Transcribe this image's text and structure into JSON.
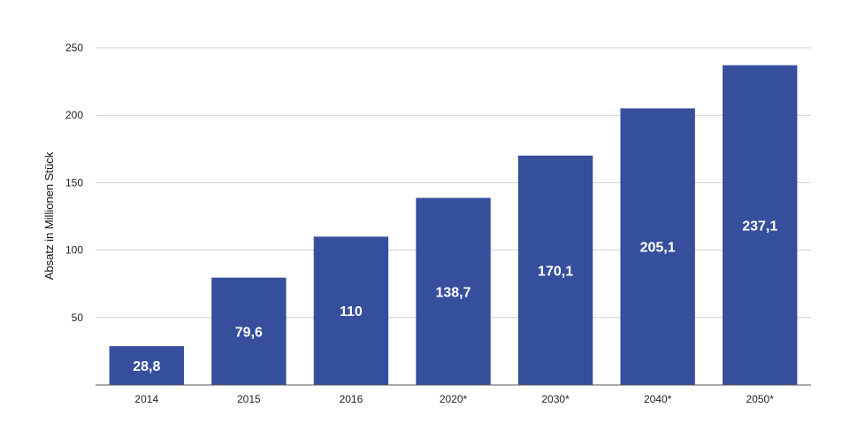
{
  "chart_data": {
    "type": "bar",
    "categories": [
      "2014",
      "2015",
      "2016",
      "2020*",
      "2030*",
      "2040*",
      "2050*"
    ],
    "values": [
      28.8,
      79.6,
      110,
      138.7,
      170.1,
      205.1,
      237.1
    ],
    "value_labels": [
      "28,8",
      "79,6",
      "110",
      "138,7",
      "170,1",
      "205,1",
      "237,1"
    ],
    "title": "",
    "xlabel": "",
    "ylabel": "Absatz in Millionen Stück",
    "ylim": [
      0,
      250
    ],
    "yticks": [
      50,
      100,
      150,
      200,
      250
    ],
    "grid": true,
    "bar_color": "#364f9d",
    "grid_color": "#d0d0d0"
  }
}
